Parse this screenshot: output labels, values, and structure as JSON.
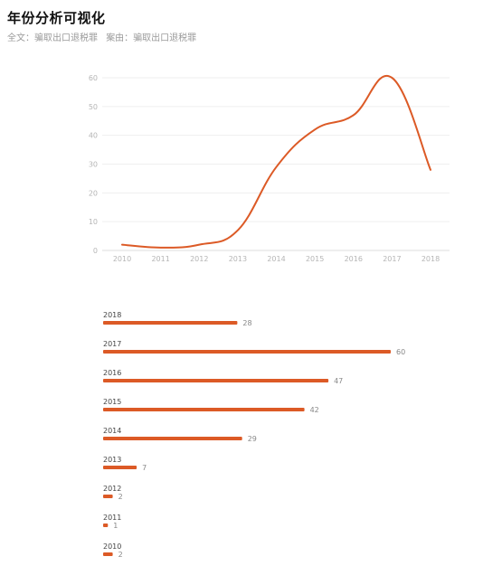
{
  "page": {
    "title": "年份分析可视化",
    "fulltext_label": "全文：骗取出口退税罪",
    "case_label": "案由：骗取出口退税罪"
  },
  "colors": {
    "series": "#dc5a26",
    "grid": "#efefef",
    "axis_text": "#b5b5b5"
  },
  "chart_data": [
    {
      "type": "line",
      "title": "",
      "xlabel": "",
      "ylabel": "",
      "categories": [
        "2010",
        "2011",
        "2012",
        "2013",
        "2014",
        "2015",
        "2016",
        "2017",
        "2018"
      ],
      "values": [
        2,
        1,
        2,
        7,
        29,
        42,
        47,
        60,
        28
      ],
      "ylim": [
        0,
        60
      ],
      "yticks": [
        0,
        10,
        20,
        30,
        40,
        50,
        60
      ],
      "grid": true,
      "smooth": true
    },
    {
      "type": "bar",
      "orientation": "horizontal",
      "title": "",
      "categories": [
        "2018",
        "2017",
        "2016",
        "2015",
        "2014",
        "2013",
        "2012",
        "2011",
        "2010"
      ],
      "values": [
        28,
        60,
        47,
        42,
        29,
        7,
        2,
        1,
        2
      ],
      "data_labels": true
    }
  ]
}
